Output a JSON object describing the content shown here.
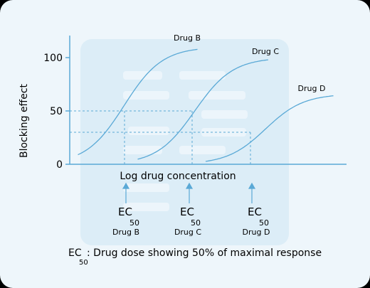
{
  "chart_data": {
    "type": "line",
    "ylabel": "Blocking effect",
    "xlabel": "Log drug concentration",
    "ylim": [
      0,
      100
    ],
    "yticks": [
      0,
      50,
      100
    ],
    "xlim": [
      0,
      100
    ],
    "series": [
      {
        "name": "Drug B",
        "ec50": 20,
        "slope": 7,
        "max": 110
      },
      {
        "name": "Drug C",
        "ec50": 46,
        "slope": 7,
        "max": 100
      },
      {
        "name": "Drug D",
        "ec50": 72,
        "slope": 7,
        "max": 66
      }
    ],
    "ec50_markers": [
      {
        "label": "EC",
        "sub": "50",
        "drug": "Drug B"
      },
      {
        "label": "EC",
        "sub": "50",
        "drug": "Drug C"
      },
      {
        "label": "EC",
        "sub": "50",
        "drug": "Drug D"
      }
    ],
    "footnote": {
      "label": "EC",
      "sub": "50",
      "text": ": Drug dose showing 50% of maximal response"
    },
    "colors": {
      "curve": "#5aa9d6",
      "axis": "#5aa9d6",
      "panel": "#dcedf7",
      "ghost": "#e9f3fa",
      "text": "#111111"
    }
  }
}
